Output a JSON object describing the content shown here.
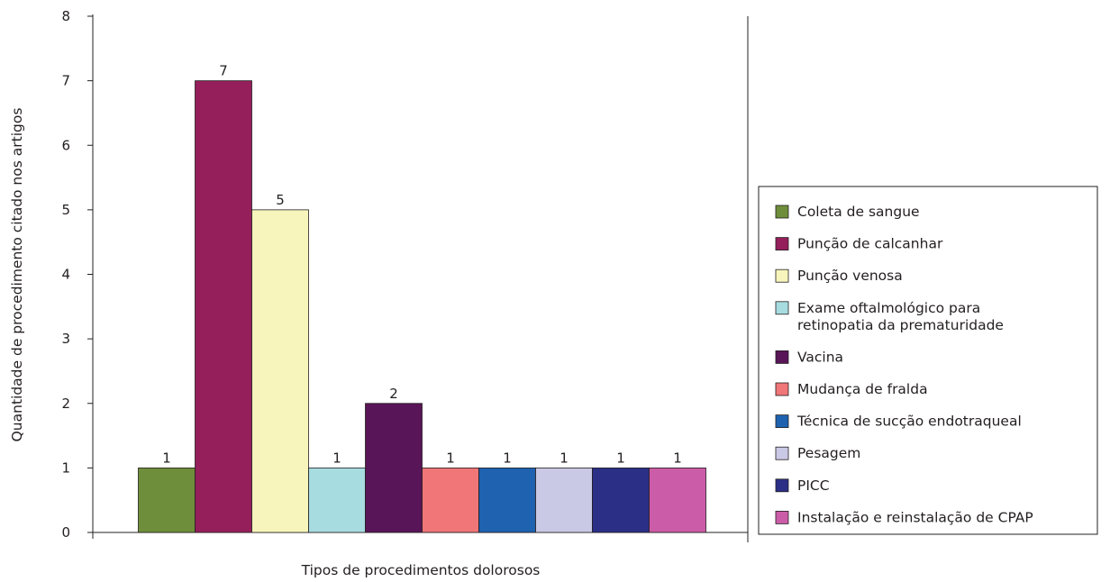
{
  "chart_data": {
    "type": "bar",
    "title": "",
    "xlabel": "Tipos de procedimentos dolorosos",
    "ylabel": "Quantidade de procedimento citado nos artigos",
    "ylim": [
      0,
      8
    ],
    "yticks": [
      0,
      1,
      2,
      3,
      4,
      5,
      6,
      7,
      8
    ],
    "grid": false,
    "legend_position": "right",
    "categories": [
      "Coleta de sangue",
      "Punção de calcanhar",
      "Punção venosa",
      "Exame oftalmológico para retinopatia da prematuridade",
      "Vacina",
      "Mudança de fralda",
      "Técnica de sucção endotraqueal",
      "Pesagem",
      "PICC",
      "Instalação e reinstalação de CPAP"
    ],
    "values": [
      1,
      7,
      5,
      1,
      2,
      1,
      1,
      1,
      1,
      1
    ],
    "colors": [
      "#6f8e3b",
      "#951f5b",
      "#f7f5bb",
      "#a7dce1",
      "#581557",
      "#f07678",
      "#1e62b0",
      "#cac9e5",
      "#2b2f86",
      "#cb5ca7"
    ],
    "legend": [
      {
        "label_lines": [
          "Coleta de sangue"
        ]
      },
      {
        "label_lines": [
          "Punção de calcanhar"
        ]
      },
      {
        "label_lines": [
          "Punção venosa"
        ]
      },
      {
        "label_lines": [
          "Exame oftalmológico para",
          "retinopatia da prematuridade"
        ]
      },
      {
        "label_lines": [
          "Vacina"
        ]
      },
      {
        "label_lines": [
          "Mudança de fralda"
        ]
      },
      {
        "label_lines": [
          "Técnica de sucção endotraqueal"
        ]
      },
      {
        "label_lines": [
          "Pesagem"
        ]
      },
      {
        "label_lines": [
          "PICC"
        ]
      },
      {
        "label_lines": [
          "Instalação e reinstalação de CPAP"
        ]
      }
    ]
  }
}
